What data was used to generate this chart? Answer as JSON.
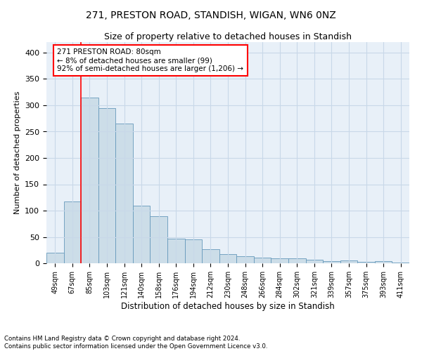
{
  "title1": "271, PRESTON ROAD, STANDISH, WIGAN, WN6 0NZ",
  "title2": "Size of property relative to detached houses in Standish",
  "xlabel": "Distribution of detached houses by size in Standish",
  "ylabel": "Number of detached properties",
  "categories": [
    "49sqm",
    "67sqm",
    "85sqm",
    "103sqm",
    "121sqm",
    "140sqm",
    "158sqm",
    "176sqm",
    "194sqm",
    "212sqm",
    "230sqm",
    "248sqm",
    "266sqm",
    "284sqm",
    "302sqm",
    "321sqm",
    "339sqm",
    "357sqm",
    "375sqm",
    "393sqm",
    "411sqm"
  ],
  "values": [
    20,
    118,
    315,
    295,
    265,
    110,
    90,
    47,
    45,
    27,
    18,
    13,
    11,
    9,
    9,
    7,
    4,
    5,
    3,
    4,
    2
  ],
  "bar_color": "#ccdde8",
  "bar_edge_color": "#6699bb",
  "annotation_text": "271 PRESTON ROAD: 80sqm\n← 8% of detached houses are smaller (99)\n92% of semi-detached houses are larger (1,206) →",
  "vline_x": 1.5,
  "ylim": [
    0,
    420
  ],
  "yticks": [
    0,
    50,
    100,
    150,
    200,
    250,
    300,
    350,
    400
  ],
  "grid_color": "#c8d8e8",
  "background_color": "#e8f0f8",
  "footnote": "Contains HM Land Registry data © Crown copyright and database right 2024.\nContains public sector information licensed under the Open Government Licence v3.0.",
  "title1_fontsize": 10,
  "title2_fontsize": 9,
  "xlabel_fontsize": 8.5,
  "ylabel_fontsize": 8
}
